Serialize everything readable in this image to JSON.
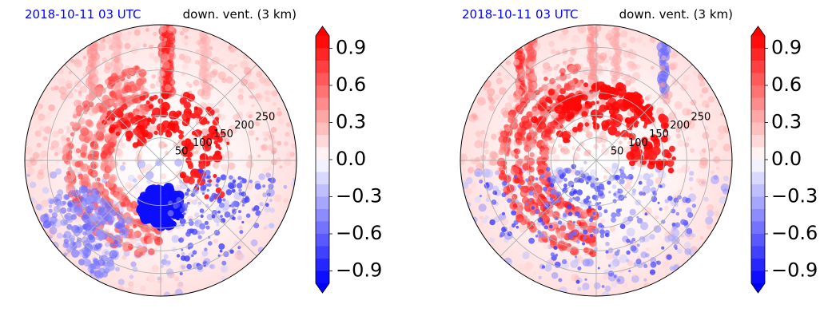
{
  "chart_data": [
    {
      "type": "heatmap",
      "projection": "polar",
      "title_left": "2018-10-11 03 UTC",
      "title_right": "down. vent. (3 km)",
      "title_left_color": "#0000ff",
      "radial_ticks": [
        "50",
        "100",
        "150",
        "200",
        "250"
      ],
      "radial_values": [
        50,
        100,
        150,
        200,
        250
      ],
      "rmax": 300,
      "grid": true,
      "colorbar": {
        "ticks": [
          "0.9",
          "0.6",
          "0.3",
          "0.0",
          "−0.3",
          "−0.6",
          "−0.9"
        ],
        "tick_values": [
          0.9,
          0.6,
          0.3,
          0.0,
          -0.3,
          -0.6,
          -0.9
        ],
        "vmin": -1.0,
        "vmax": 1.0,
        "cmap": "bwr",
        "extend": "both"
      }
    },
    {
      "type": "heatmap",
      "projection": "polar",
      "title_left": "2018-10-11 03 UTC",
      "title_right": "down. vent. (3 km)",
      "title_left_color": "#0000ff",
      "radial_ticks": [
        "50",
        "100",
        "150",
        "200",
        "250"
      ],
      "radial_values": [
        50,
        100,
        150,
        200,
        250
      ],
      "rmax": 300,
      "grid": true,
      "colorbar": {
        "ticks": [
          "0.9",
          "0.6",
          "0.3",
          "0.0",
          "−0.3",
          "−0.6",
          "−0.9"
        ],
        "tick_values": [
          0.9,
          0.6,
          0.3,
          0.0,
          -0.3,
          -0.6,
          -0.9
        ],
        "vmin": -1.0,
        "vmax": 1.0,
        "cmap": "bwr",
        "extend": "both"
      }
    }
  ]
}
